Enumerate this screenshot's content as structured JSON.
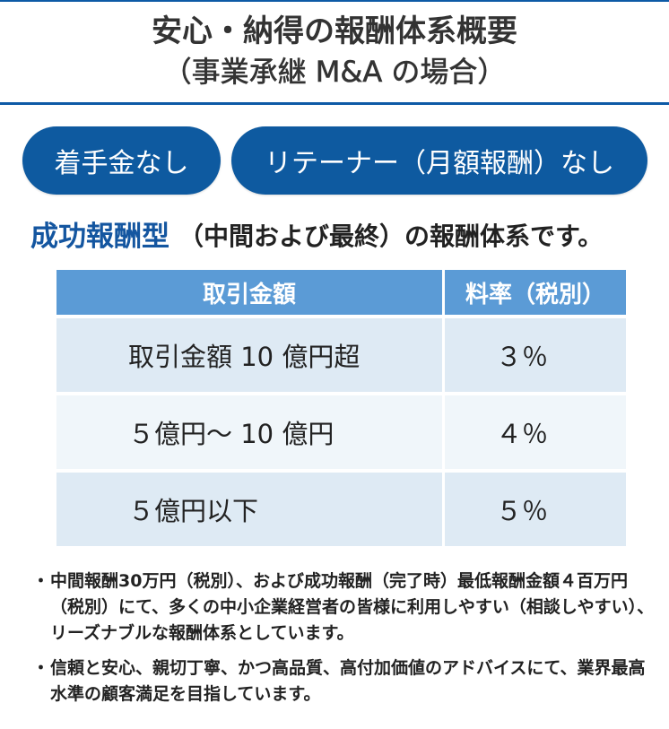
{
  "header": {
    "title_line1": "安心・納得の報酬体系概要",
    "title_line2": "（事業承継 M&A の場合）"
  },
  "badges": [
    {
      "label": "着手金なし"
    },
    {
      "label": "リテーナー（月額報酬）なし"
    }
  ],
  "subtitle": {
    "highlight": "成功報酬型",
    "rest": "（中間および最終）の報酬体系です。"
  },
  "table": {
    "headers": [
      "取引金額",
      "料率（税別）"
    ],
    "rows": [
      {
        "amount": "取引金額 10 億円超",
        "rate": "３％"
      },
      {
        "amount": "５億円～ 10 億円",
        "rate": "４％"
      },
      {
        "amount": "５億円以下",
        "rate": "５％"
      }
    ]
  },
  "notes": {
    "bullet": "・",
    "items": [
      "中間報酬30万円（税別）、および成功報酬（完了時）最低報酬金額４百万円（税別）にて、多くの中小企業経営者の皆様に利用しやすい（相談しやすい）、リーズナブルな報酬体系としています。",
      "信頼と安心、親切丁寧、かつ高品質、高付加価値のアドバイスにて、業界最高水準の顧客満足を目指しています。"
    ]
  },
  "colors": {
    "rule": "#0d5aa6",
    "badge_bg": "#0e5aa0",
    "highlight_text": "#1456a0",
    "highlight_marker": "#fde37a",
    "table_header": "#5b9bd6",
    "row_dark": "#deeaf4",
    "row_light": "#f0f6fa"
  }
}
